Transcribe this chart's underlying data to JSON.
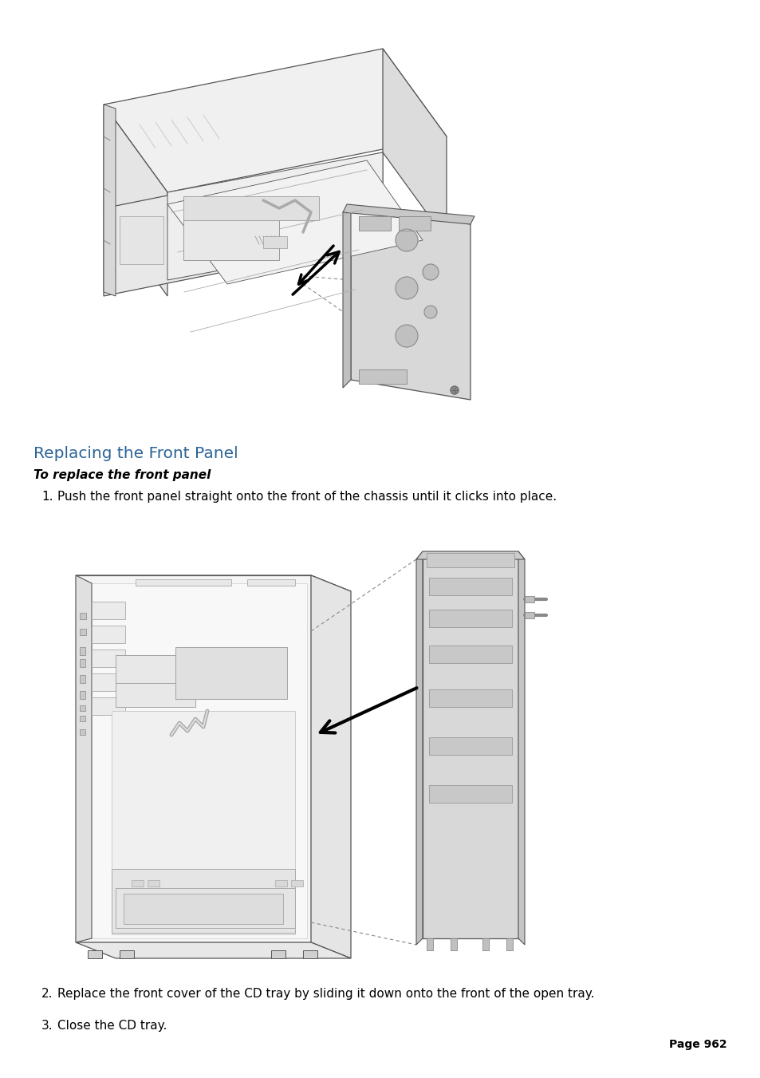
{
  "page_background": "#ffffff",
  "title": "Replacing the Front Panel",
  "title_color": "#2c6496",
  "title_fontsize": 14.5,
  "subtitle": "To replace the front panel",
  "subtitle_fontsize": 11,
  "body_fontsize": 11,
  "steps": [
    "Push the front panel straight onto the front of the chassis until it clicks into place.",
    "Replace the front cover of the CD tray by sliding it down onto the front of the open tray.",
    "Close the CD tray."
  ],
  "page_number": "Page 962",
  "page_number_fontsize": 10,
  "text_color": "#000000",
  "line_color": "#555555",
  "fill_light": "#f5f5f5",
  "fill_mid": "#e8e8e8",
  "fill_dark": "#d5d5d5"
}
